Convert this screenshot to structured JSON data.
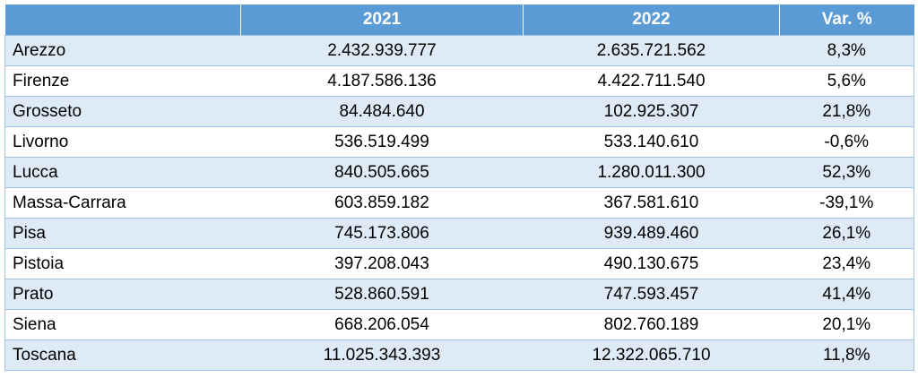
{
  "table": {
    "headers": [
      "",
      "2021",
      "2022",
      "Var. %"
    ],
    "rows": [
      {
        "name": "Arezzo",
        "y2021": "2.432.939.777",
        "y2022": "2.635.721.562",
        "var": "8,3%"
      },
      {
        "name": "Firenze",
        "y2021": "4.187.586.136",
        "y2022": "4.422.711.540",
        "var": "5,6%"
      },
      {
        "name": "Grosseto",
        "y2021": "84.484.640",
        "y2022": "102.925.307",
        "var": "21,8%"
      },
      {
        "name": "Livorno",
        "y2021": "536.519.499",
        "y2022": "533.140.610",
        "var": "-0,6%"
      },
      {
        "name": "Lucca",
        "y2021": "840.505.665",
        "y2022": "1.280.011.300",
        "var": "52,3%"
      },
      {
        "name": "Massa-Carrara",
        "y2021": "603.859.182",
        "y2022": "367.581.610",
        "var": "-39,1%"
      },
      {
        "name": "Pisa",
        "y2021": "745.173.806",
        "y2022": "939.489.460",
        "var": "26,1%"
      },
      {
        "name": "Pistoia",
        "y2021": "397.208.043",
        "y2022": "490.130.675",
        "var": "23,4%"
      },
      {
        "name": "Prato",
        "y2021": "528.860.591",
        "y2022": "747.593.457",
        "var": "41,4%"
      },
      {
        "name": "Siena",
        "y2021": "668.206.054",
        "y2022": "802.760.189",
        "var": "20,1%"
      },
      {
        "name": "Toscana",
        "y2021": "11.025.343.393",
        "y2022": "12.322.065.710",
        "var": "11,8%"
      }
    ]
  },
  "colors": {
    "header_bg": "#5b9bd5",
    "band_bg": "#deebf7",
    "border": "#9dc3e6"
  }
}
